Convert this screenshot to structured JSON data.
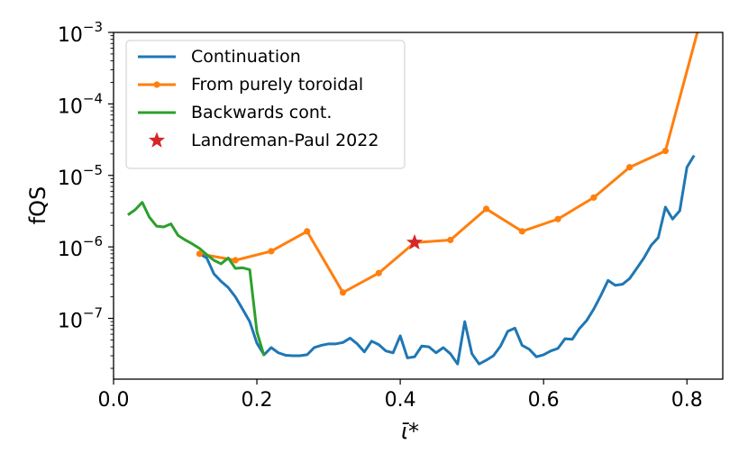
{
  "chart_data": {
    "type": "line",
    "xlabel": "ῑ*",
    "ylabel": "fQS",
    "xlim": [
      0.0,
      0.85
    ],
    "ylim_log10": [
      -7.85,
      -3.0
    ],
    "y_scale": "log",
    "grid": false,
    "legend_placement": "top-left",
    "x_ticks": [
      "0.0",
      "0.2",
      "0.4",
      "0.6",
      "0.8"
    ],
    "x_tick_values": [
      0.0,
      0.2,
      0.4,
      0.6,
      0.8
    ],
    "y_ticks": [
      {
        "base": "10",
        "exp": "−3",
        "value": 0.001
      },
      {
        "base": "10",
        "exp": "−4",
        "value": 0.0001
      },
      {
        "base": "10",
        "exp": "−5",
        "value": 1e-05
      },
      {
        "base": "10",
        "exp": "−6",
        "value": 1e-06
      },
      {
        "base": "10",
        "exp": "−7",
        "value": 1e-07
      }
    ],
    "series": [
      {
        "name": "Continuation",
        "color": "#1f77b4",
        "marker": "none",
        "points": [
          [
            0.12,
            8e-07
          ],
          [
            0.13,
            7e-07
          ],
          [
            0.14,
            4.2e-07
          ],
          [
            0.15,
            3.3e-07
          ],
          [
            0.16,
            2.7e-07
          ],
          [
            0.17,
            2e-07
          ],
          [
            0.18,
            1.35e-07
          ],
          [
            0.19,
            9e-08
          ],
          [
            0.2,
            4.5e-08
          ],
          [
            0.21,
            3.1e-08
          ],
          [
            0.22,
            3.9e-08
          ],
          [
            0.23,
            3.3e-08
          ],
          [
            0.24,
            3.05e-08
          ],
          [
            0.25,
            3e-08
          ],
          [
            0.26,
            3e-08
          ],
          [
            0.27,
            3.1e-08
          ],
          [
            0.28,
            3.9e-08
          ],
          [
            0.29,
            4.2e-08
          ],
          [
            0.3,
            4.4e-08
          ],
          [
            0.31,
            4.4e-08
          ],
          [
            0.32,
            4.6e-08
          ],
          [
            0.33,
            5.3e-08
          ],
          [
            0.34,
            4.4e-08
          ],
          [
            0.35,
            3.4e-08
          ],
          [
            0.36,
            4.8e-08
          ],
          [
            0.37,
            4.3e-08
          ],
          [
            0.38,
            3.5e-08
          ],
          [
            0.39,
            3.3e-08
          ],
          [
            0.4,
            5.7e-08
          ],
          [
            0.41,
            2.8e-08
          ],
          [
            0.42,
            2.9e-08
          ],
          [
            0.43,
            4.1e-08
          ],
          [
            0.44,
            4e-08
          ],
          [
            0.45,
            3.3e-08
          ],
          [
            0.46,
            3.9e-08
          ],
          [
            0.47,
            3.2e-08
          ],
          [
            0.48,
            2.3e-08
          ],
          [
            0.49,
            9e-08
          ],
          [
            0.5,
            3.2e-08
          ],
          [
            0.51,
            2.3e-08
          ],
          [
            0.52,
            2.6e-08
          ],
          [
            0.53,
            3e-08
          ],
          [
            0.54,
            4.1e-08
          ],
          [
            0.55,
            6.6e-08
          ],
          [
            0.56,
            7.3e-08
          ],
          [
            0.57,
            4.2e-08
          ],
          [
            0.58,
            3.7e-08
          ],
          [
            0.59,
            2.9e-08
          ],
          [
            0.6,
            3.1e-08
          ],
          [
            0.61,
            3.5e-08
          ],
          [
            0.62,
            3.8e-08
          ],
          [
            0.63,
            5.2e-08
          ],
          [
            0.64,
            5.1e-08
          ],
          [
            0.65,
            7.2e-08
          ],
          [
            0.66,
            9.3e-08
          ],
          [
            0.67,
            1.35e-07
          ],
          [
            0.68,
            2.1e-07
          ],
          [
            0.69,
            3.4e-07
          ],
          [
            0.7,
            2.9e-07
          ],
          [
            0.71,
            3e-07
          ],
          [
            0.72,
            3.6e-07
          ],
          [
            0.73,
            5e-07
          ],
          [
            0.74,
            7e-07
          ],
          [
            0.75,
            1.05e-06
          ],
          [
            0.76,
            1.35e-06
          ],
          [
            0.77,
            3.6e-06
          ],
          [
            0.78,
            2.45e-06
          ],
          [
            0.79,
            3.2e-06
          ],
          [
            0.8,
            1.3e-05
          ],
          [
            0.81,
            1.9e-05
          ]
        ]
      },
      {
        "name": "From purely toroidal",
        "color": "#ff7f0e",
        "marker": "circle",
        "points": [
          [
            0.12,
            8e-07
          ],
          [
            0.17,
            6.5e-07
          ],
          [
            0.22,
            8.7e-07
          ],
          [
            0.27,
            1.65e-06
          ],
          [
            0.32,
            2.3e-07
          ],
          [
            0.37,
            4.3e-07
          ],
          [
            0.42,
            1.15e-06
          ],
          [
            0.47,
            1.25e-06
          ],
          [
            0.52,
            3.4e-06
          ],
          [
            0.57,
            1.65e-06
          ],
          [
            0.62,
            2.45e-06
          ],
          [
            0.67,
            4.9e-06
          ],
          [
            0.72,
            1.3e-05
          ],
          [
            0.77,
            2.2e-05
          ],
          [
            0.82,
            0.0016
          ]
        ]
      },
      {
        "name": "Backwards cont.",
        "color": "#2ca02c",
        "marker": "none",
        "points": [
          [
            0.02,
            2.8e-06
          ],
          [
            0.03,
            3.3e-06
          ],
          [
            0.04,
            4.2e-06
          ],
          [
            0.05,
            2.6e-06
          ],
          [
            0.06,
            1.95e-06
          ],
          [
            0.07,
            1.9e-06
          ],
          [
            0.08,
            2.1e-06
          ],
          [
            0.09,
            1.45e-06
          ],
          [
            0.1,
            1.25e-06
          ],
          [
            0.11,
            1.1e-06
          ],
          [
            0.12,
            9.5e-07
          ],
          [
            0.13,
            7.8e-07
          ],
          [
            0.14,
            6.5e-07
          ],
          [
            0.15,
            5.8e-07
          ],
          [
            0.16,
            7e-07
          ],
          [
            0.17,
            5e-07
          ],
          [
            0.18,
            5.1e-07
          ],
          [
            0.19,
            4.8e-07
          ],
          [
            0.2,
            6.5e-08
          ],
          [
            0.21,
            3e-08
          ]
        ]
      },
      {
        "name": "Landreman-Paul 2022",
        "color": "#d62728",
        "marker": "star",
        "points": [
          [
            0.42,
            1.15e-06
          ]
        ]
      }
    ]
  }
}
